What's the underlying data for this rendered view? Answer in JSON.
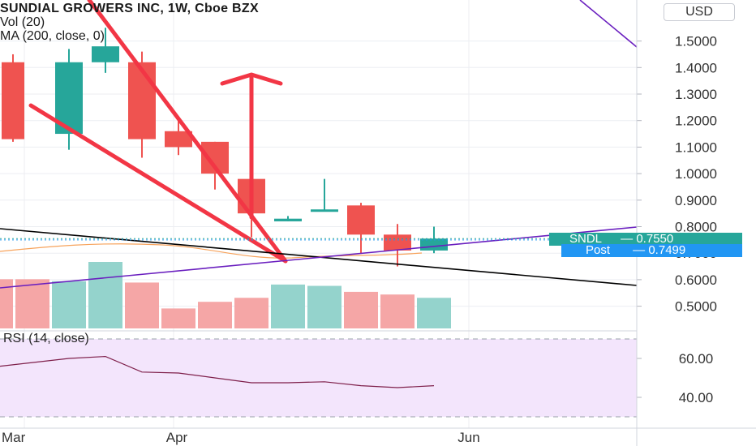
{
  "header": {
    "title": "SUNDIAL GROWERS INC, 1W, Cboe BZX",
    "vol_label": "Vol (20)",
    "ma_label": "MA (200, close, 0)"
  },
  "currency_button": "USD",
  "rsi_label": "RSI (14, close)",
  "price_tags": {
    "last": {
      "symbol": "SNDL",
      "separator": "—",
      "value": "0.7550",
      "color": "#26a69a"
    },
    "post": {
      "symbol": "Post",
      "separator": "—",
      "value": "0.7499",
      "color": "#2196f3"
    }
  },
  "chart_data": [
    {
      "type": "candlestick",
      "title": "SUNDIAL GROWERS INC, 1W, Cboe BZX",
      "interval": "1W",
      "y_axis_ticks": [
        "1.5000",
        "1.4000",
        "1.3000",
        "1.2000",
        "1.1000",
        "1.0000",
        "0.9000",
        "0.8000",
        "0.7000",
        "0.6000",
        "0.5000"
      ],
      "x_axis_ticks": [
        "Mar",
        "Apr",
        "Jun"
      ],
      "ylim": [
        0.42,
        1.55
      ],
      "candles": [
        {
          "open": 1.42,
          "high": 1.45,
          "low": 1.12,
          "close": 1.13
        },
        {
          "open": 1.15,
          "high": 1.47,
          "low": 1.09,
          "close": 1.42
        },
        {
          "open": 1.42,
          "high": 1.55,
          "low": 1.38,
          "close": 1.48
        },
        {
          "open": 1.42,
          "high": 1.46,
          "low": 1.06,
          "close": 1.13
        },
        {
          "open": 1.16,
          "high": 1.21,
          "low": 1.07,
          "close": 1.1
        },
        {
          "open": 1.12,
          "high": 1.12,
          "low": 0.94,
          "close": 1.0
        },
        {
          "open": 0.98,
          "high": 0.99,
          "low": 0.76,
          "close": 0.85
        },
        {
          "open": 0.82,
          "high": 0.84,
          "low": 0.82,
          "close": 0.83
        },
        {
          "open": 0.86,
          "high": 0.98,
          "low": 0.86,
          "close": 0.865
        },
        {
          "open": 0.88,
          "high": 0.89,
          "low": 0.7,
          "close": 0.77
        },
        {
          "open": 0.77,
          "high": 0.81,
          "low": 0.65,
          "close": 0.71
        },
        {
          "open": 0.71,
          "high": 0.8,
          "low": 0.7,
          "close": 0.755
        }
      ],
      "volume": {
        "label": "Vol (20)",
        "relative_values": [
          0.74,
          0.71,
          1.0,
          0.69,
          0.3,
          0.4,
          0.46,
          0.66,
          0.64,
          0.55,
          0.51,
          0.46
        ],
        "directions": [
          "down",
          "up",
          "up",
          "down",
          "down",
          "down",
          "down",
          "up",
          "up",
          "down",
          "down",
          "up"
        ]
      },
      "moving_average": {
        "label": "MA (200, close, 0)",
        "color": "#f7a35c"
      },
      "last_price": 0.755,
      "post_market_price": 0.7499,
      "drawings": [
        {
          "name": "falling-wedge-upper-line",
          "color": "#f23645"
        },
        {
          "name": "falling-wedge-lower-line",
          "color": "#f23645"
        },
        {
          "name": "target-arrow",
          "color": "#f23645"
        },
        {
          "name": "black-trendline",
          "color": "#000000"
        },
        {
          "name": "purple-rising-trendline",
          "color": "#6a1fbf"
        },
        {
          "name": "purple-upper-trendline",
          "color": "#6a1fbf"
        }
      ],
      "colors": {
        "up": "#26a69a",
        "down": "#ef5350",
        "up_volume": "#94d3cc",
        "down_volume": "#f5a6a6"
      }
    },
    {
      "type": "line",
      "title": "RSI (14, close)",
      "y_axis_ticks": [
        "60.00",
        "40.00"
      ],
      "ylim": [
        28,
        73
      ],
      "band": [
        30,
        70
      ],
      "values": [
        56,
        60,
        61,
        53,
        52.5,
        50,
        47.5,
        47.5,
        48,
        46,
        45,
        46
      ],
      "colors": {
        "line": "#7e1f4a",
        "band_fill": "#f3e5fc"
      }
    }
  ]
}
